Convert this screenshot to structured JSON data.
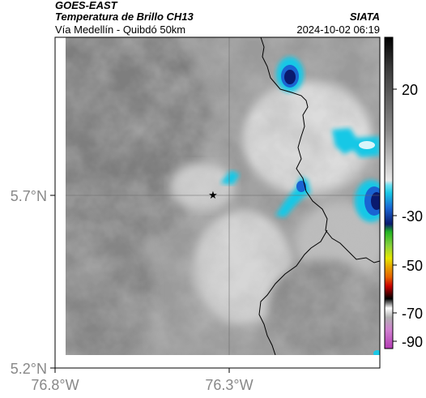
{
  "header": {
    "title_line1": "GOES-EAST",
    "title_line2": "Temperatura de Brillo CH13",
    "subtitle": "Vía Medellín - Quibdó 50km",
    "brand": "SIATA",
    "datetime": "2024-10-02 06:19"
  },
  "map": {
    "lon_ticks": [
      "76.8°W",
      "76.3°W"
    ],
    "lat_ticks": [
      "5.7°N",
      "5.2°N"
    ],
    "marker": "star-icon"
  },
  "colorbar": {
    "tick_labels": [
      "20",
      "-30",
      "-50",
      "-70",
      "-90"
    ],
    "colors": {
      "warm_gray_dark": "#4a4a4a",
      "warm_gray_light": "#f2f2f2",
      "cyan": "#19c8e6",
      "blue": "#1a64d2",
      "navy": "#0a1a6e",
      "green": "#22b422",
      "yellow": "#e6e600",
      "orange": "#e66400",
      "red": "#c80000",
      "black": "#000000",
      "magenta": "#b43cb4"
    }
  }
}
